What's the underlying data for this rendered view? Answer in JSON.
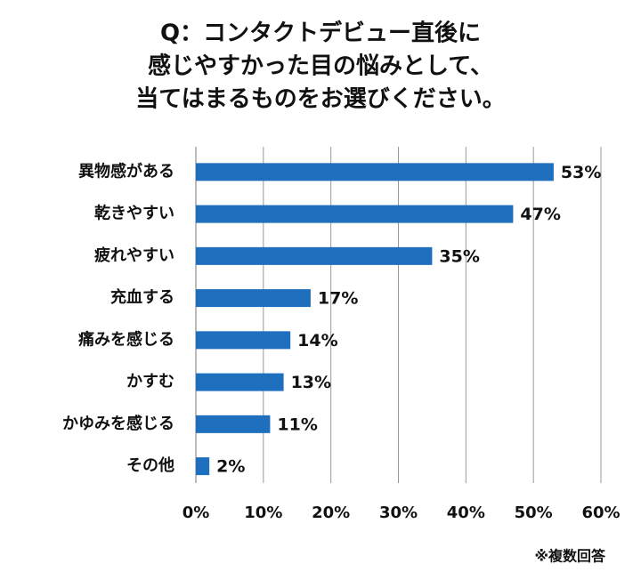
{
  "chart_data": {
    "type": "bar",
    "orientation": "horizontal",
    "title": [
      "Q：コンタクトデビュー直後に",
      "感じやすかった目の悩みとして、",
      "当てはまるものをお選びください。"
    ],
    "categories": [
      "異物感がある",
      "乾きやすい",
      "疲れやすい",
      "充血する",
      "痛みを感じる",
      "かすむ",
      "かゆみを感じる",
      "その他"
    ],
    "values": [
      53,
      47,
      35,
      17,
      14,
      13,
      11,
      2
    ],
    "value_labels": [
      "53%",
      "47%",
      "35%",
      "17%",
      "14%",
      "13%",
      "11%",
      "2%"
    ],
    "color": "#1f6fbf",
    "xlim": [
      0,
      60
    ],
    "xticks": [
      {
        "value": 0,
        "label": "0%"
      },
      {
        "value": 10,
        "label": "10%"
      },
      {
        "value": 20,
        "label": "20%"
      },
      {
        "value": 30,
        "label": "30%"
      },
      {
        "value": 40,
        "label": "40%"
      },
      {
        "value": 50,
        "label": "50%"
      },
      {
        "value": 60,
        "label": "60%"
      }
    ],
    "grid": true,
    "note": "※複数回答"
  }
}
